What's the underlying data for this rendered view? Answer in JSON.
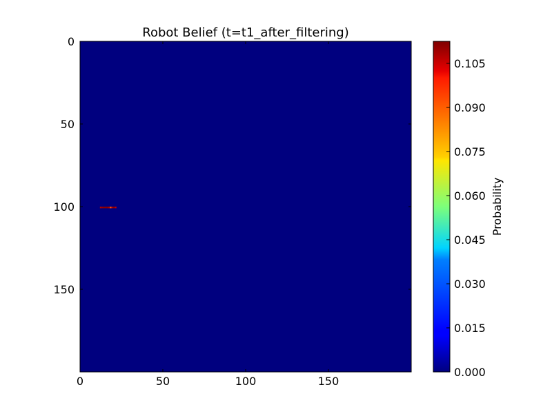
{
  "chart_data": {
    "type": "heatmap",
    "title": "Robot Belief (t=t1_after_filtering)",
    "xlabel": "",
    "ylabel": "",
    "grid_size": [
      200,
      200
    ],
    "xlim": [
      0,
      200
    ],
    "ylim": [
      200,
      0
    ],
    "x_ticks": [
      0,
      50,
      100,
      150
    ],
    "y_ticks": [
      0,
      50,
      100,
      150
    ],
    "background_value": 0.0,
    "colormap": "jet",
    "nonzero_cells": [
      {
        "row": 100,
        "col": 12,
        "value": 0.107
      },
      {
        "row": 100,
        "col": 13,
        "value": 0.11
      },
      {
        "row": 100,
        "col": 14,
        "value": 0.111
      },
      {
        "row": 100,
        "col": 15,
        "value": 0.111
      },
      {
        "row": 100,
        "col": 16,
        "value": 0.111
      },
      {
        "row": 100,
        "col": 17,
        "value": 0.109
      },
      {
        "row": 100,
        "col": 18,
        "value": 0.09
      },
      {
        "row": 100,
        "col": 19,
        "value": 0.108
      },
      {
        "row": 100,
        "col": 20,
        "value": 0.111
      },
      {
        "row": 100,
        "col": 21,
        "value": 0.105
      }
    ],
    "colorbar": {
      "label": "Probability",
      "vmin": 0.0,
      "vmax": 0.1125,
      "ticks": [
        0.0,
        0.015,
        0.03,
        0.045,
        0.06,
        0.075,
        0.09,
        0.105
      ],
      "tick_labels": [
        "0.000",
        "0.015",
        "0.030",
        "0.045",
        "0.060",
        "0.075",
        "0.090",
        "0.105"
      ]
    }
  }
}
